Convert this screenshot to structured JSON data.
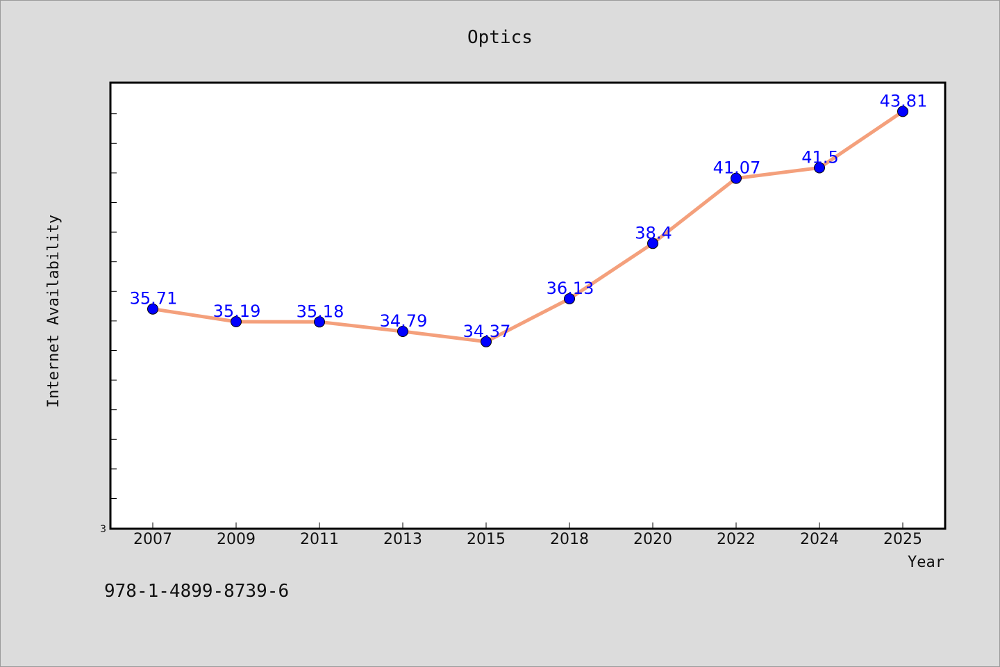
{
  "chart_data": {
    "type": "line",
    "title": "Optics",
    "xlabel": "Year",
    "ylabel": "Internet Availability",
    "categories": [
      "2007",
      "2009",
      "2011",
      "2013",
      "2015",
      "2018",
      "2020",
      "2022",
      "2024",
      "2025"
    ],
    "series": [
      {
        "values": [
          35.71,
          35.19,
          35.18,
          34.79,
          34.37,
          36.13,
          38.4,
          41.07,
          41.5,
          43.81
        ]
      }
    ],
    "data_labels": [
      "35.71",
      "35.19",
      "35.18",
      "34.79",
      "34.37",
      "36.13",
      "38.4",
      "41.07",
      "41.5",
      "43.81"
    ],
    "ylim": [
      26.7,
      44.99
    ],
    "yticks_labeled": [
      "3"
    ],
    "grid": false,
    "line_color": "#f4a07c",
    "marker_color": "#0000ff",
    "label_color": "#0000ff"
  },
  "footer": {
    "isbn": "978-1-4899-8739-6"
  }
}
